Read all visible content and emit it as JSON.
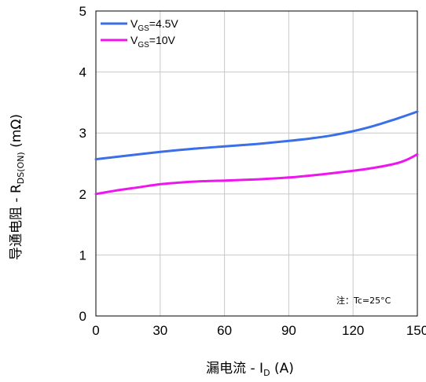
{
  "chart_data": {
    "type": "line",
    "xlabel": {
      "pre": "漏电流 - I",
      "sub": "D",
      "post": " (A)"
    },
    "ylabel": {
      "pre": "导通电阻 - R",
      "sub": "DS(ON)",
      "post": " (mΩ)"
    },
    "xlim": [
      0,
      150
    ],
    "ylim": [
      0,
      5
    ],
    "xticks": [
      "0",
      "30",
      "60",
      "90",
      "120",
      "150"
    ],
    "yticks": [
      "0",
      "1",
      "2",
      "3",
      "4",
      "5"
    ],
    "grid": true,
    "legend_position": "top-left",
    "note": "注：Tc=25°C",
    "series": [
      {
        "name": {
          "pre": "V",
          "sub": "GS",
          "post": "=4.5V"
        },
        "color": "#3a6fe8",
        "x": [
          0,
          15,
          30,
          45,
          60,
          75,
          90,
          100,
          110,
          120,
          130,
          140,
          150
        ],
        "y": [
          2.57,
          2.63,
          2.69,
          2.74,
          2.78,
          2.82,
          2.87,
          2.91,
          2.96,
          3.03,
          3.12,
          3.23,
          3.35
        ]
      },
      {
        "name": {
          "pre": "V",
          "sub": "GS",
          "post": "=10V"
        },
        "color": "#ee16ee",
        "x": [
          0,
          10,
          20,
          30,
          40,
          50,
          60,
          75,
          90,
          105,
          120,
          130,
          140,
          145,
          150
        ],
        "y": [
          2.0,
          2.06,
          2.11,
          2.16,
          2.19,
          2.21,
          2.22,
          2.24,
          2.27,
          2.32,
          2.38,
          2.43,
          2.5,
          2.56,
          2.65
        ]
      }
    ]
  }
}
